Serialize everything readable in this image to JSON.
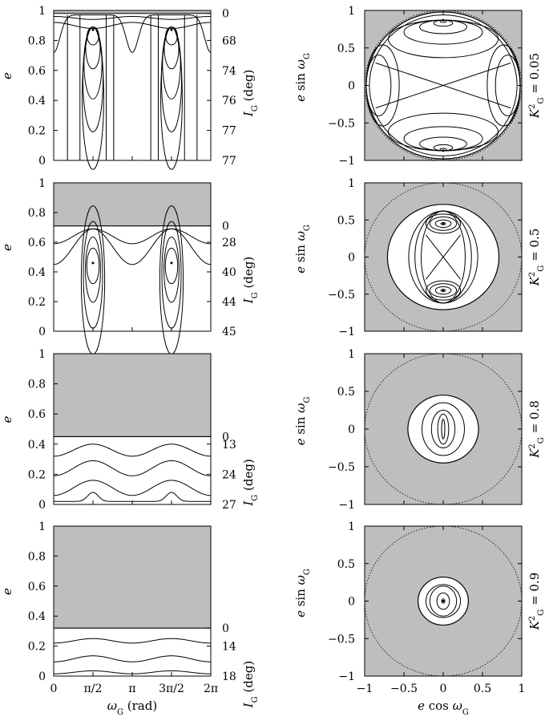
{
  "chart_data": [
    {
      "type": "line",
      "panel": "left-1",
      "xlabel": "",
      "ylabel": "e",
      "y2label": "I_G (deg)",
      "xlim": [
        0,
        6.2832
      ],
      "ylim": [
        0,
        1
      ],
      "shaded_above_e": 0.98,
      "yticks": [
        "0",
        "0.2",
        "0.4",
        "0.6",
        "0.8",
        "1"
      ],
      "y2ticks": [
        {
          "e": 0.98,
          "label": "0"
        },
        {
          "e": 0.8,
          "label": "68"
        },
        {
          "e": 0.6,
          "label": "74"
        },
        {
          "e": 0.4,
          "label": "76"
        },
        {
          "e": 0.2,
          "label": "77"
        },
        {
          "e": 0.0,
          "label": "77"
        }
      ],
      "kg2": 0.05,
      "xticks": [
        "0",
        "π/2",
        "π",
        "3π/2",
        "2π"
      ]
    },
    {
      "type": "line",
      "panel": "left-2",
      "xlabel": "",
      "ylabel": "e",
      "y2label": "I_G (deg)",
      "xlim": [
        0,
        6.2832
      ],
      "ylim": [
        0,
        1
      ],
      "shaded_above_e": 0.71,
      "yticks": [
        "0",
        "0.2",
        "0.4",
        "0.6",
        "0.8",
        "1"
      ],
      "y2ticks": [
        {
          "e": 0.71,
          "label": "0"
        },
        {
          "e": 0.6,
          "label": "28"
        },
        {
          "e": 0.4,
          "label": "40"
        },
        {
          "e": 0.2,
          "label": "44"
        },
        {
          "e": 0.0,
          "label": "45"
        }
      ],
      "kg2": 0.5,
      "xticks": [
        "0",
        "π/2",
        "π",
        "3π/2",
        "2π"
      ]
    },
    {
      "type": "line",
      "panel": "left-3",
      "xlabel": "",
      "ylabel": "e",
      "y2label": "I_G (deg)",
      "xlim": [
        0,
        6.2832
      ],
      "ylim": [
        0,
        1
      ],
      "shaded_above_e": 0.45,
      "yticks": [
        "0",
        "0.2",
        "0.4",
        "0.6",
        "0.8",
        "1"
      ],
      "y2ticks": [
        {
          "e": 0.45,
          "label": "0"
        },
        {
          "e": 0.4,
          "label": "13"
        },
        {
          "e": 0.2,
          "label": "24"
        },
        {
          "e": 0.0,
          "label": "27"
        }
      ],
      "kg2": 0.8,
      "xticks": [
        "0",
        "π/2",
        "π",
        "3π/2",
        "2π"
      ]
    },
    {
      "type": "line",
      "panel": "left-4",
      "xlabel": "ω_G (rad)",
      "ylabel": "e",
      "y2label": "I_G (deg)",
      "xlim": [
        0,
        6.2832
      ],
      "ylim": [
        0,
        1
      ],
      "shaded_above_e": 0.32,
      "yticks": [
        "0",
        "0.2",
        "0.4",
        "0.6",
        "0.8",
        "1"
      ],
      "y2ticks": [
        {
          "e": 0.32,
          "label": "0"
        },
        {
          "e": 0.2,
          "label": "14"
        },
        {
          "e": 0.0,
          "label": "18"
        }
      ],
      "kg2": 0.9,
      "xticks": [
        "0",
        "π/2",
        "π",
        "3π/2",
        "2π"
      ]
    },
    {
      "type": "line",
      "panel": "right-1",
      "xlabel": "",
      "ylabel": "e sin ω_G",
      "xlim": [
        -1,
        1
      ],
      "ylim": [
        -1,
        1
      ],
      "accessible_radius": 0.98,
      "side_label": "K_G^2 = 0.05",
      "yticks": [
        "−1",
        "−0.5",
        "0",
        "0.5",
        "1"
      ],
      "xticks": [
        "−1",
        "−0.5",
        "0",
        "0.5",
        "1"
      ]
    },
    {
      "type": "line",
      "panel": "right-2",
      "xlabel": "",
      "ylabel": "e sin ω_G",
      "xlim": [
        -1,
        1
      ],
      "ylim": [
        -1,
        1
      ],
      "accessible_radius": 0.71,
      "side_label": "K_G^2 = 0.5",
      "yticks": [
        "−1",
        "−0.5",
        "0",
        "0.5",
        "1"
      ],
      "xticks": [
        "−1",
        "−0.5",
        "0",
        "0.5",
        "1"
      ]
    },
    {
      "type": "line",
      "panel": "right-3",
      "xlabel": "",
      "ylabel": "e sin ω_G",
      "xlim": [
        -1,
        1
      ],
      "ylim": [
        -1,
        1
      ],
      "accessible_radius": 0.45,
      "side_label": "K_G^2 = 0.8",
      "yticks": [
        "−1",
        "−0.5",
        "0",
        "0.5",
        "1"
      ],
      "xticks": [
        "−1",
        "−0.5",
        "0",
        "0.5",
        "1"
      ]
    },
    {
      "type": "line",
      "panel": "right-4",
      "xlabel": "e cos ω_G",
      "ylabel": "e sin ω_G",
      "xlim": [
        -1,
        1
      ],
      "ylim": [
        -1,
        1
      ],
      "accessible_radius": 0.32,
      "side_label": "K_G^2 = 0.9",
      "yticks": [
        "−1",
        "−0.5",
        "0",
        "0.5",
        "1"
      ],
      "xticks": [
        "−1",
        "−0.5",
        "0",
        "0.5",
        "1"
      ]
    }
  ]
}
